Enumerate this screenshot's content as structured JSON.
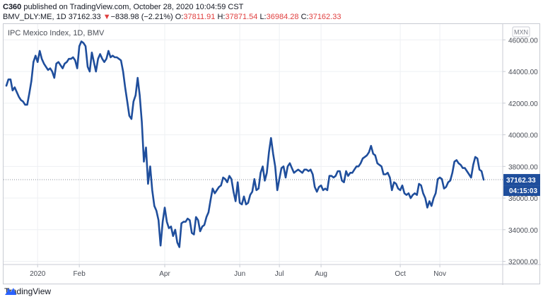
{
  "header": {
    "publisher": "C360",
    "published_text": " published on TradingView.com, October 28, 2020 10:04:59 CST"
  },
  "quote": {
    "symbol": "BMV_DLY:ME, 1D",
    "last": "37162.33",
    "arrow": "▼",
    "change": "−838.98 (−2.21%)",
    "open_label": "O:",
    "open": "37811.91",
    "high_label": "H:",
    "high": "37871.54",
    "low_label": "L:",
    "low": "36984.28",
    "close_label": "C:",
    "close": "37162.33"
  },
  "footer": {
    "brand": "TradingView"
  },
  "colors": {
    "line": "#1f4e9c",
    "price_tag": "#1f4e9c",
    "down": "#e04040"
  },
  "chart_data": {
    "type": "line",
    "title": "IPC Mexico Index, 1D, BMV",
    "currency": "MXN",
    "ylim": [
      31800,
      47000
    ],
    "y_ticks": [
      32000,
      34000,
      36000,
      38000,
      40000,
      42000,
      44000,
      46000
    ],
    "y_tick_labels": [
      "32000.00",
      "34000.00",
      "36000.00",
      "38000.00",
      "40000.00",
      "42000.00",
      "44000.00",
      "46000.00"
    ],
    "x_ticks": [
      {
        "label": "2020",
        "idx": 15
      },
      {
        "label": "Feb",
        "idx": 35
      },
      {
        "label": "Apr",
        "idx": 76
      },
      {
        "label": "Jun",
        "idx": 112
      },
      {
        "label": "Jul",
        "idx": 131
      },
      {
        "label": "Aug",
        "idx": 151
      },
      {
        "label": "Oct",
        "idx": 189
      },
      {
        "label": "Nov",
        "idx": 208
      }
    ],
    "last_price_label": "37162.33",
    "countdown_label": "04:15:03",
    "series": [
      {
        "name": "IPC Mexico Index",
        "values": [
          43100,
          43500,
          43500,
          42800,
          43000,
          42700,
          42400,
          42200,
          42100,
          41900,
          41900,
          42600,
          43400,
          44600,
          45000,
          44600,
          45300,
          44800,
          44500,
          44300,
          44100,
          44200,
          44000,
          43600,
          44500,
          44600,
          44400,
          44200,
          44500,
          44600,
          44800,
          44800,
          44900,
          44700,
          44200,
          45600,
          45900,
          45800,
          45600,
          44300,
          44000,
          45200,
          44600,
          44000,
          44800,
          45100,
          44800,
          44600,
          44800,
          45300,
          44900,
          45000,
          44900,
          44900,
          44800,
          44700,
          44000,
          43000,
          42100,
          41200,
          41000,
          42100,
          42500,
          43600,
          42500,
          40800,
          38300,
          39200,
          36900,
          38000,
          36500,
          35500,
          35200,
          34600,
          33000,
          34500,
          35400,
          34500,
          34100,
          34200,
          33600,
          34000,
          33200,
          32900,
          34400,
          34500,
          34500,
          34700,
          34600,
          33800,
          33700,
          34800,
          34600,
          33900,
          34200,
          34300,
          34800,
          35100,
          35900,
          36600,
          36300,
          36500,
          36700,
          36800,
          37300,
          37200,
          37000,
          37400,
          37200,
          36400,
          35800,
          37000,
          35700,
          35600,
          36100,
          35600,
          35700,
          36200,
          36400,
          37200,
          36500,
          36600,
          37600,
          38000,
          37100,
          37600,
          38900,
          39800,
          38800,
          38000,
          36500,
          37200,
          37900,
          38000,
          37300,
          38000,
          38200,
          37900,
          37600,
          37700,
          37800,
          37700,
          37600,
          37800,
          37800,
          37700,
          37800,
          37500,
          36700,
          36400,
          36700,
          36800,
          36500,
          36600,
          36500,
          37400,
          37400,
          37300,
          37400,
          37700,
          37700,
          37100,
          37000,
          37700,
          37400,
          37600,
          37600,
          37800,
          38000,
          38000,
          38200,
          38500,
          38600,
          38700,
          38900,
          39300,
          38800,
          38700,
          38200,
          38100,
          38000,
          37500,
          37500,
          37600,
          37300,
          36500,
          37000,
          36900,
          36600,
          36500,
          36800,
          36300,
          36200,
          36300,
          36000,
          36200,
          36300,
          36200,
          36900,
          36800,
          36300,
          36000,
          35400,
          35800,
          35500,
          36000,
          36300,
          37200,
          37300,
          37200,
          36600,
          36700,
          37000,
          37100,
          37600,
          38300,
          38400,
          38200,
          38100,
          37900,
          37900,
          37700,
          37500,
          37300,
          38100,
          38600,
          38500,
          37800,
          37700,
          37162.33
        ]
      }
    ]
  }
}
